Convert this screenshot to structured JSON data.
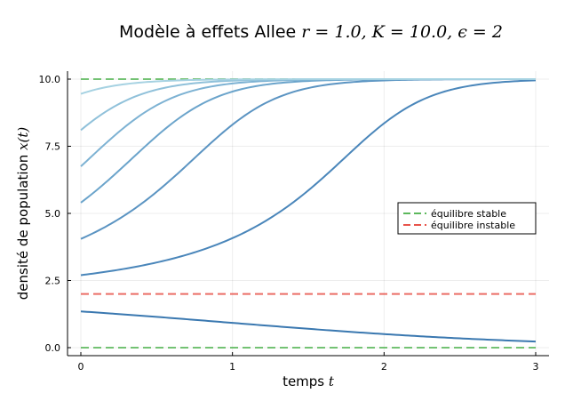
{
  "chart_data": {
    "type": "line",
    "title": "Modèle à effets Allee",
    "title_params": "r = 1.0, K = 10.0, ϵ = 2",
    "xlabel": "temps",
    "xlabel_var": "t",
    "ylabel": "densité de population",
    "ylabel_var": "x(t)",
    "xlim": [
      0,
      3
    ],
    "ylim": [
      -0.3,
      10.3
    ],
    "xticks": [
      "0",
      "1",
      "2",
      "3"
    ],
    "yticks": [
      "0.0",
      "2.5",
      "5.0",
      "7.5",
      "10.0"
    ],
    "grid": true,
    "legend_position": "right",
    "parameters": {
      "r": 1.0,
      "K": 10.0,
      "epsilon": 2
    },
    "reference_lines": [
      {
        "name": "équilibre stable",
        "y": 10,
        "color": "#5cb85c",
        "style": "dashed"
      },
      {
        "name": "équilibre stable",
        "y": 0,
        "color": "#5cb85c",
        "style": "dashed"
      },
      {
        "name": "équilibre instable",
        "y": 2,
        "color": "#e8544b",
        "style": "dashed"
      }
    ],
    "legend": [
      {
        "label": "équilibre stable",
        "color": "#5cb85c"
      },
      {
        "label": "équilibre instable",
        "color": "#e8544b"
      }
    ],
    "series": [
      {
        "x0": 1.35,
        "color": "#3a78b0"
      },
      {
        "x0": 2.7,
        "color": "#4a86ba"
      },
      {
        "x0": 4.05,
        "color": "#5b94c2"
      },
      {
        "x0": 5.4,
        "color": "#6ba4cb"
      },
      {
        "x0": 6.75,
        "color": "#7db2d3"
      },
      {
        "x0": 8.1,
        "color": "#90c1da"
      },
      {
        "x0": 9.45,
        "color": "#a6d2e2"
      }
    ]
  }
}
